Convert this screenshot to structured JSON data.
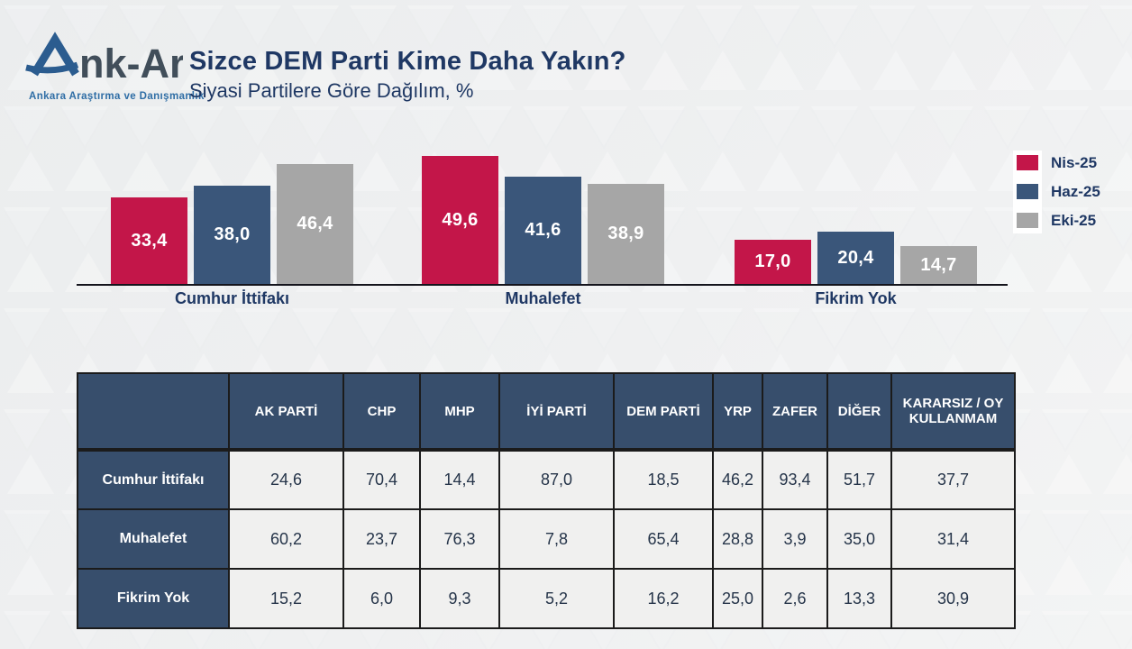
{
  "brand": {
    "logo_a": "A",
    "logo_rest": "nk-Ar",
    "tagline": "Ankara Araştırma ve Danışmanlık"
  },
  "header": {
    "title": "Sizce DEM Parti Kime Daha Yakın?",
    "subtitle": "Siyasi Partilere Göre Dağılım, %"
  },
  "chart_data": {
    "type": "bar",
    "title": "Sizce DEM Parti Kime Daha Yakın?",
    "subtitle": "Siyasi Partilere Göre Dağılım, %",
    "categories": [
      "Cumhur İttifakı",
      "Muhalefet",
      "Fikrim Yok"
    ],
    "series": [
      {
        "name": "Nis-25",
        "color": "#C31649",
        "values": [
          33.4,
          49.6,
          17.0
        ]
      },
      {
        "name": "Haz-25",
        "color": "#3A567A",
        "values": [
          38.0,
          41.6,
          20.4
        ]
      },
      {
        "name": "Eki-25",
        "color": "#A6A6A6",
        "values": [
          46.4,
          38.9,
          14.7
        ]
      }
    ],
    "value_labels": [
      [
        "33,4",
        "38,0",
        "46,4"
      ],
      [
        "49,6",
        "41,6",
        "38,9"
      ],
      [
        "17,0",
        "20,4",
        "14,7"
      ]
    ],
    "xlabel": "",
    "ylabel": "",
    "ylim": [
      0,
      55
    ],
    "grid": false,
    "axis_ticks_visible": false,
    "legend_position": "right"
  },
  "table": {
    "columns": [
      "",
      "AK PARTİ",
      "CHP",
      "MHP",
      "İYİ PARTİ",
      "DEM PARTİ",
      "YRP",
      "ZAFER",
      "DİĞER",
      "KARARSIZ / OY KULLANMAM"
    ],
    "rows": [
      {
        "label": "Cumhur İttifakı",
        "values": [
          "24,6",
          "70,4",
          "14,4",
          "87,0",
          "18,5",
          "46,2",
          "93,4",
          "51,7",
          "37,7"
        ]
      },
      {
        "label": "Muhalefet",
        "values": [
          "60,2",
          "23,7",
          "76,3",
          "7,8",
          "65,4",
          "28,8",
          "3,9",
          "35,0",
          "31,4"
        ]
      },
      {
        "label": "Fikrim Yok",
        "values": [
          "15,2",
          "6,0",
          "9,3",
          "5,2",
          "16,2",
          "25,0",
          "2,6",
          "13,3",
          "30,9"
        ]
      }
    ]
  },
  "colors": {
    "accent_red": "#C31649",
    "accent_blue": "#3A567A",
    "accent_gray": "#A6A6A6",
    "navy_text": "#1F3864",
    "table_header_bg": "#374E6C",
    "page_bg": "#eef0f1"
  }
}
